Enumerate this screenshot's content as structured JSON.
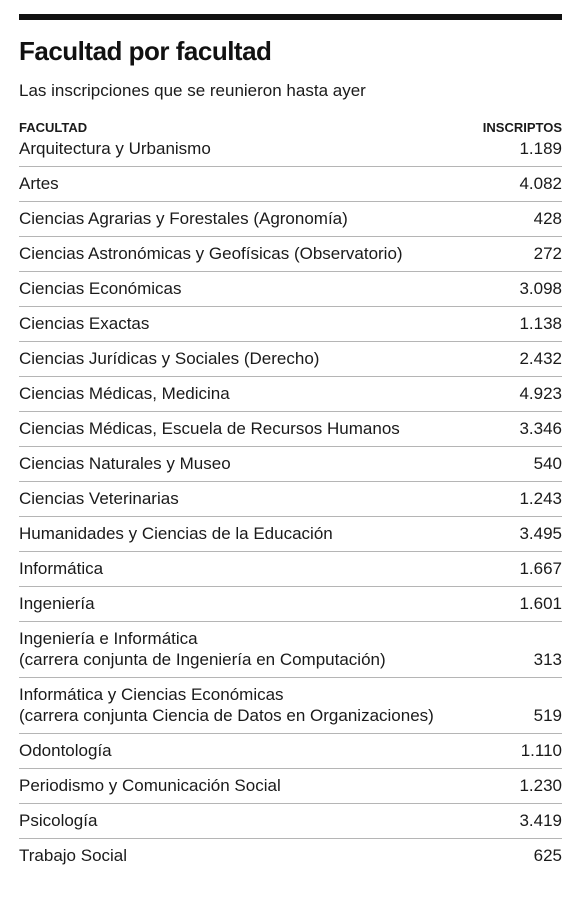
{
  "title": "Facultad por facultad",
  "subtitle": "Las inscripciones que se reunieron hasta ayer",
  "table": {
    "col_facultad": "FACULTAD",
    "col_inscriptos": "INSCRIPTOS"
  },
  "chart_data": {
    "type": "table",
    "title": "Facultad por facultad",
    "subtitle": "Las inscripciones que se reunieron hasta ayer",
    "columns": [
      "FACULTAD",
      "INSCRIPTOS"
    ],
    "rows": [
      {
        "facultad": "Arquitectura y Urbanismo",
        "inscriptos": "1.189"
      },
      {
        "facultad": "Artes",
        "inscriptos": "4.082"
      },
      {
        "facultad": "Ciencias Agrarias y Forestales (Agronomía)",
        "inscriptos": "428"
      },
      {
        "facultad": "Ciencias Astronómicas y Geofísicas (Observatorio)",
        "inscriptos": "272"
      },
      {
        "facultad": "Ciencias Económicas",
        "inscriptos": "3.098"
      },
      {
        "facultad": "Ciencias Exactas",
        "inscriptos": "1.138"
      },
      {
        "facultad": "Ciencias Jurídicas y Sociales (Derecho)",
        "inscriptos": "2.432"
      },
      {
        "facultad": "Ciencias Médicas, Medicina",
        "inscriptos": "4.923"
      },
      {
        "facultad": "Ciencias Médicas, Escuela de Recursos Humanos",
        "inscriptos": "3.346"
      },
      {
        "facultad": "Ciencias Naturales y Museo",
        "inscriptos": "540"
      },
      {
        "facultad": "Ciencias Veterinarias",
        "inscriptos": "1.243"
      },
      {
        "facultad": "Humanidades y Ciencias de la Educación",
        "inscriptos": "3.495"
      },
      {
        "facultad": "Informática",
        "inscriptos": "1.667"
      },
      {
        "facultad": "Ingeniería",
        "inscriptos": "1.601"
      },
      {
        "facultad": "Ingeniería e Informática\n(carrera conjunta de Ingeniería en Computación)",
        "inscriptos": "313"
      },
      {
        "facultad": "Informática y Ciencias Económicas\n(carrera conjunta Ciencia de Datos en Organizaciones)",
        "inscriptos": "519"
      },
      {
        "facultad": "Odontología",
        "inscriptos": "1.110"
      },
      {
        "facultad": "Periodismo y Comunicación Social",
        "inscriptos": "1.230"
      },
      {
        "facultad": "Psicología",
        "inscriptos": "3.419"
      },
      {
        "facultad": "Trabajo Social",
        "inscriptos": "625"
      }
    ]
  }
}
